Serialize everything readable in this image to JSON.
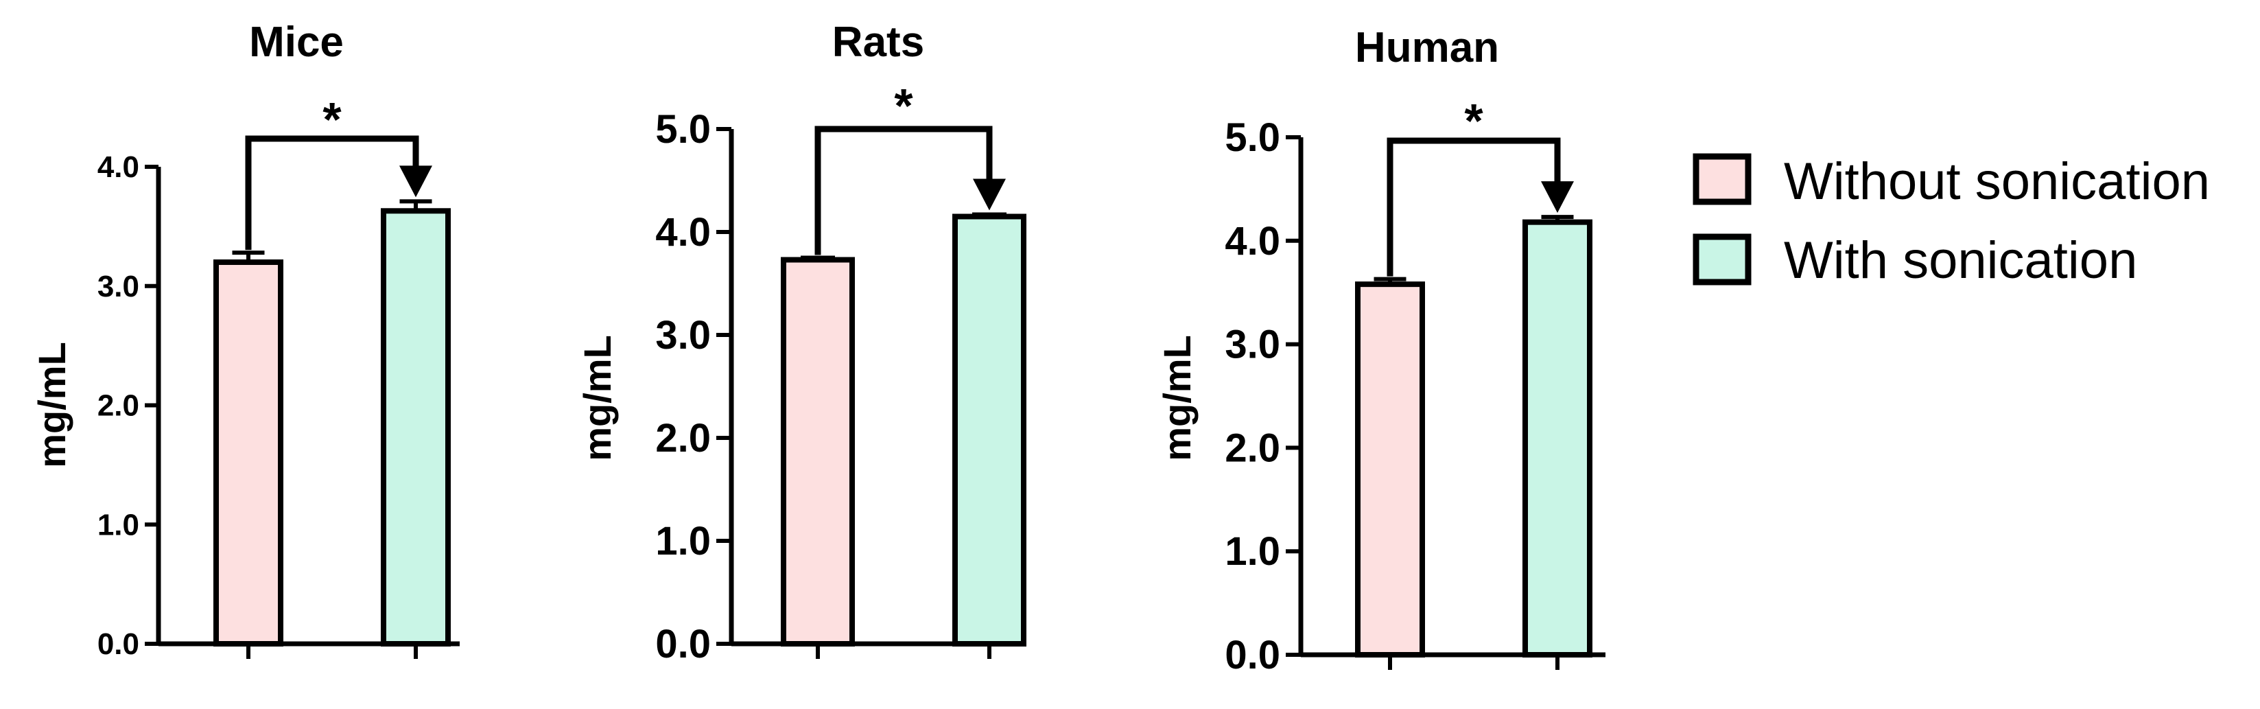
{
  "chart_data": [
    {
      "type": "bar",
      "title": "Mice",
      "ylabel": "mg/mL",
      "ylim": [
        0,
        4
      ],
      "ytick_labels": [
        "0.0",
        "1.0",
        "2.0",
        "3.0",
        "4.0"
      ],
      "categories": [
        "Without sonication",
        "With sonication"
      ],
      "values": [
        3.2,
        3.63
      ],
      "errors": [
        0.08,
        0.08
      ],
      "significance": "*"
    },
    {
      "type": "bar",
      "title": "Rats",
      "ylabel": "mg/mL",
      "ylim": [
        0,
        5
      ],
      "ytick_labels": [
        "0.0",
        "1.0",
        "2.0",
        "3.0",
        "4.0",
        "5.0"
      ],
      "categories": [
        "Without sonication",
        "With sonication"
      ],
      "values": [
        3.73,
        4.15
      ],
      "errors": [
        0.02,
        0.02
      ],
      "significance": "*"
    },
    {
      "type": "bar",
      "title": "Human",
      "ylabel": "mg/mL",
      "ylim": [
        0,
        5
      ],
      "ytick_labels": [
        "0.0",
        "1.0",
        "2.0",
        "3.0",
        "4.0",
        "5.0"
      ],
      "categories": [
        "Without sonication",
        "With sonication"
      ],
      "values": [
        3.58,
        4.18
      ],
      "errors": [
        0.05,
        0.05
      ],
      "significance": "*"
    }
  ],
  "legend": {
    "items": [
      {
        "label": "Without sonication",
        "color": "#fde0e0"
      },
      {
        "label": "With sonication",
        "color": "#c9f5e6"
      }
    ]
  }
}
